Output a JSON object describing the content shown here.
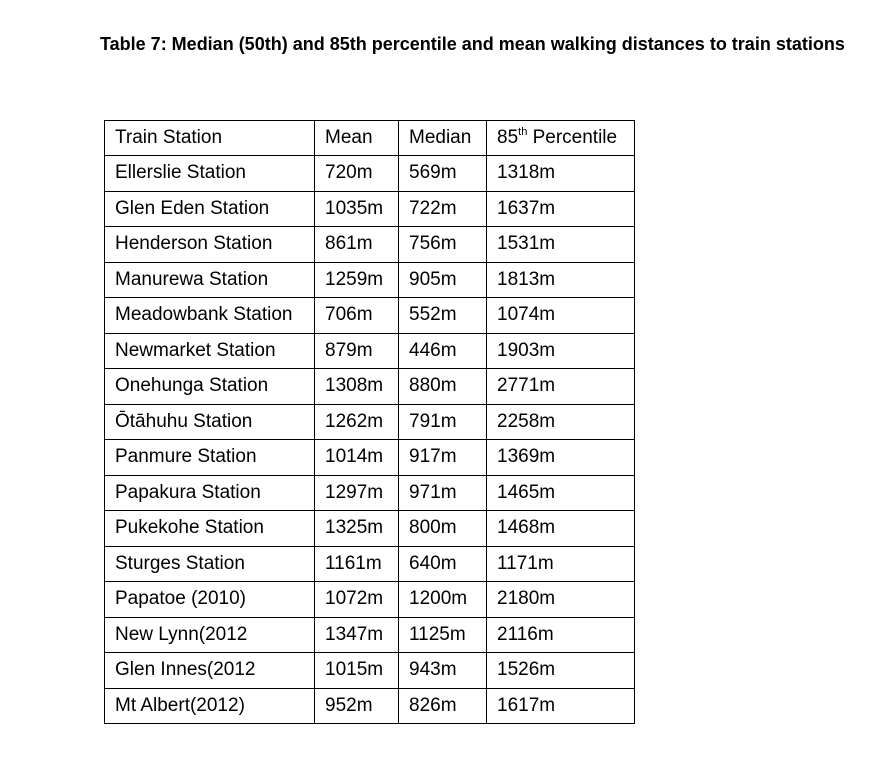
{
  "caption": "Table 7: Median (50th) and 85th percentile and mean walking distances to train stations",
  "table": {
    "headers": {
      "station": "Train Station",
      "mean": "Mean",
      "median": "Median",
      "p85_num": "85",
      "p85_sup": "th",
      "p85_text": " Percentile"
    },
    "rows": [
      {
        "station": "Ellerslie Station",
        "mean": "720m",
        "median": "569m",
        "p85": "1318m"
      },
      {
        "station": "Glen Eden Station",
        "mean": "1035m",
        "median": "722m",
        "p85": "1637m"
      },
      {
        "station": "Henderson Station",
        "mean": "861m",
        "median": "756m",
        "p85": "1531m"
      },
      {
        "station": "Manurewa Station",
        "mean": "1259m",
        "median": "905m",
        "p85": "1813m"
      },
      {
        "station": "Meadowbank Station",
        "mean": "706m",
        "median": "552m",
        "p85": "1074m"
      },
      {
        "station": "Newmarket Station",
        "mean": "879m",
        "median": "446m",
        "p85": "1903m"
      },
      {
        "station": "Onehunga Station",
        "mean": "1308m",
        "median": "880m",
        "p85": "2771m"
      },
      {
        "station": "Ōtāhuhu Station",
        "mean": "1262m",
        "median": "791m",
        "p85": "2258m"
      },
      {
        "station": "Panmure Station",
        "mean": "1014m",
        "median": "917m",
        "p85": "1369m"
      },
      {
        "station": "Papakura Station",
        "mean": "1297m",
        "median": "971m",
        "p85": "1465m"
      },
      {
        "station": "Pukekohe Station",
        "mean": "1325m",
        "median": "800m",
        "p85": "1468m"
      },
      {
        "station": "Sturges Station",
        "mean": "1161m",
        "median": "640m",
        "p85": "1171m"
      },
      {
        "station": "Papatoe (2010)",
        "mean": "1072m",
        "median": "1200m",
        "p85": "2180m"
      },
      {
        "station": "New Lynn(2012",
        "mean": "1347m",
        "median": "1125m",
        "p85": "2116m"
      },
      {
        "station": "Glen Innes(2012",
        "mean": "1015m",
        "median": "943m",
        "p85": "1526m"
      },
      {
        "station": "Mt Albert(2012)",
        "mean": "952m",
        "median": "826m",
        "p85": "1617m"
      }
    ]
  }
}
